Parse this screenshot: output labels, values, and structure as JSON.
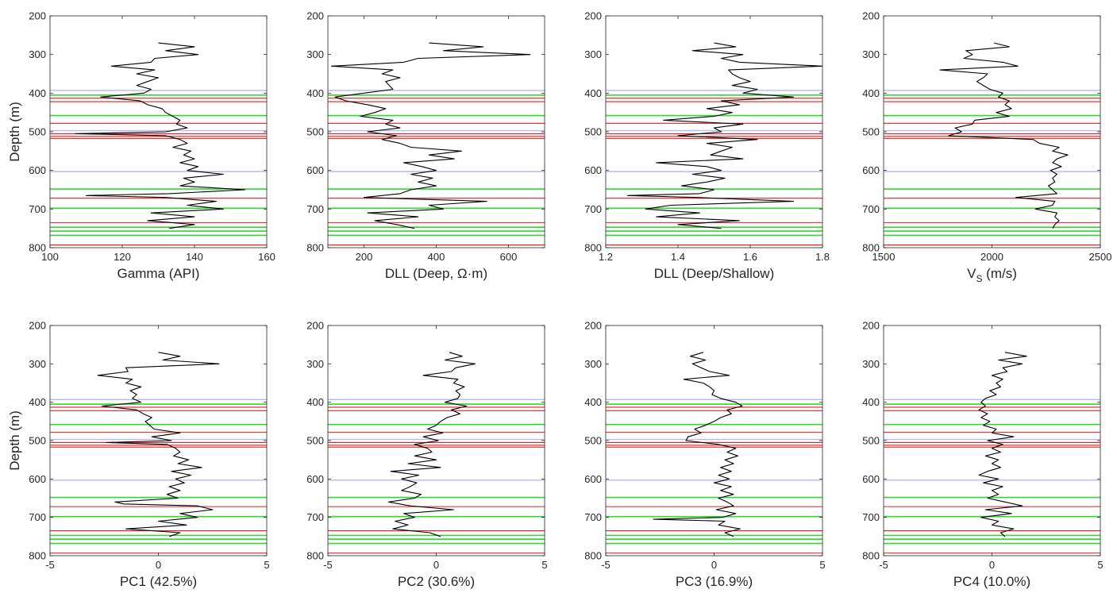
{
  "figure": {
    "ylabel": "Depth (m)"
  },
  "markers": {
    "blue_depths": [
      393,
      497,
      603
    ],
    "green_depths": [
      405,
      458,
      648,
      698,
      747,
      757,
      768
    ],
    "red_depths": [
      413,
      422,
      478,
      505,
      512,
      517,
      672,
      735,
      793
    ]
  },
  "chart_data": [
    {
      "type": "line",
      "xlabel": "Gamma (API)",
      "xlim": [
        100,
        160
      ],
      "xticks": [
        100,
        120,
        140,
        160
      ],
      "ylim": [
        200,
        800
      ],
      "yticks": [
        200,
        300,
        400,
        500,
        600,
        700,
        800
      ],
      "y_reversed": true,
      "series": [
        {
          "y": [
            270,
            280,
            290,
            300,
            310,
            320,
            330,
            340,
            350,
            360,
            370,
            380,
            390,
            400,
            410,
            420,
            430,
            440,
            450,
            460,
            470,
            480,
            490,
            500,
            505,
            510,
            520,
            530,
            540,
            550,
            560,
            570,
            580,
            590,
            600,
            610,
            620,
            630,
            640,
            650,
            660,
            665,
            670,
            680,
            690,
            700,
            710,
            720,
            730,
            740,
            750
          ],
          "x": [
            130,
            140,
            132,
            141,
            129,
            128,
            117,
            129,
            124,
            130,
            127,
            124,
            128,
            126,
            114,
            125,
            127,
            131,
            132,
            134,
            136,
            135,
            138,
            132,
            107,
            132,
            136,
            138,
            134,
            139,
            137,
            140,
            136,
            141,
            138,
            148,
            137,
            140,
            136,
            154,
            133,
            110,
            132,
            146,
            138,
            148,
            128,
            140,
            127,
            140,
            133
          ]
        }
      ]
    },
    {
      "type": "line",
      "xlabel": "DLL (Deep, Ω·m)",
      "xlim": [
        100,
        700
      ],
      "xticks": [
        200,
        400,
        600
      ],
      "ylim": [
        200,
        800
      ],
      "yticks": [
        200,
        300,
        400,
        500,
        600,
        700,
        800
      ],
      "y_reversed": true,
      "series": [
        {
          "y": [
            270,
            280,
            290,
            300,
            310,
            320,
            330,
            340,
            350,
            360,
            370,
            380,
            390,
            400,
            410,
            420,
            430,
            440,
            450,
            460,
            470,
            480,
            490,
            500,
            510,
            520,
            530,
            540,
            550,
            560,
            570,
            580,
            590,
            600,
            610,
            620,
            630,
            640,
            650,
            660,
            670,
            680,
            690,
            700,
            710,
            720,
            730,
            740,
            750
          ],
          "x": [
            380,
            530,
            420,
            660,
            350,
            310,
            110,
            280,
            250,
            300,
            260,
            270,
            280,
            200,
            120,
            150,
            210,
            260,
            230,
            190,
            280,
            260,
            300,
            210,
            290,
            250,
            300,
            330,
            470,
            380,
            450,
            310,
            360,
            400,
            330,
            390,
            350,
            400,
            330,
            300,
            200,
            540,
            380,
            420,
            210,
            350,
            230,
            290,
            340
          ]
        }
      ]
    },
    {
      "type": "line",
      "xlabel": "DLL (Deep/Shallow)",
      "xlim": [
        1.2,
        1.8
      ],
      "xticks": [
        1.2,
        1.4,
        1.6,
        1.8
      ],
      "ylim": [
        200,
        800
      ],
      "yticks": [
        200,
        300,
        400,
        500,
        600,
        700,
        800
      ],
      "y_reversed": true,
      "series": [
        {
          "y": [
            270,
            280,
            290,
            300,
            310,
            320,
            330,
            340,
            350,
            360,
            370,
            380,
            390,
            400,
            410,
            420,
            430,
            440,
            450,
            460,
            470,
            480,
            490,
            500,
            510,
            520,
            530,
            540,
            550,
            560,
            570,
            580,
            590,
            600,
            610,
            620,
            630,
            640,
            650,
            660,
            665,
            670,
            680,
            690,
            700,
            710,
            720,
            730,
            740,
            750
          ],
          "x": [
            1.5,
            1.56,
            1.44,
            1.58,
            1.52,
            1.57,
            1.8,
            1.54,
            1.55,
            1.57,
            1.6,
            1.55,
            1.62,
            1.58,
            1.72,
            1.52,
            1.57,
            1.48,
            1.55,
            1.5,
            1.36,
            1.58,
            1.5,
            1.52,
            1.4,
            1.62,
            1.48,
            1.55,
            1.52,
            1.49,
            1.58,
            1.34,
            1.48,
            1.52,
            1.44,
            1.53,
            1.48,
            1.41,
            1.5,
            1.46,
            1.26,
            1.45,
            1.72,
            1.38,
            1.31,
            1.46,
            1.34,
            1.57,
            1.4,
            1.52
          ]
        }
      ]
    },
    {
      "type": "line",
      "xlabel": "VS (m/s)",
      "xlim": [
        1500,
        2500
      ],
      "xticks": [
        1500,
        2000,
        2500
      ],
      "ylim": [
        200,
        800
      ],
      "yticks": [
        200,
        300,
        400,
        500,
        600,
        700,
        800
      ],
      "y_reversed": true,
      "series": [
        {
          "y": [
            270,
            280,
            290,
            300,
            310,
            320,
            330,
            340,
            350,
            360,
            370,
            380,
            390,
            400,
            410,
            420,
            430,
            440,
            450,
            460,
            470,
            480,
            490,
            500,
            510,
            520,
            530,
            540,
            550,
            560,
            570,
            580,
            590,
            600,
            610,
            620,
            630,
            640,
            650,
            660,
            670,
            680,
            690,
            700,
            710,
            720,
            730,
            740,
            750
          ],
          "x": [
            2010,
            2080,
            1880,
            1910,
            1870,
            2050,
            2120,
            1760,
            1980,
            1960,
            1930,
            1960,
            1990,
            2050,
            2030,
            2080,
            2060,
            2090,
            2020,
            2080,
            1920,
            1910,
            1830,
            1860,
            1800,
            2190,
            2220,
            2310,
            2280,
            2350,
            2300,
            2280,
            2320,
            2270,
            2300,
            2280,
            2290,
            2260,
            2280,
            2300,
            2110,
            2290,
            2280,
            2200,
            2300,
            2290,
            2310,
            2290,
            2280
          ]
        }
      ]
    },
    {
      "type": "line",
      "xlabel": "PC1 (42.5%)",
      "xlim": [
        -5,
        5
      ],
      "xticks": [
        -5,
        0,
        5
      ],
      "ylim": [
        200,
        800
      ],
      "yticks": [
        200,
        300,
        400,
        500,
        600,
        700,
        800
      ],
      "y_reversed": true,
      "series": [
        {
          "y": [
            270,
            280,
            290,
            300,
            310,
            320,
            330,
            340,
            350,
            360,
            370,
            380,
            390,
            400,
            410,
            420,
            430,
            440,
            450,
            460,
            470,
            480,
            490,
            500,
            505,
            510,
            520,
            530,
            540,
            550,
            560,
            570,
            580,
            590,
            600,
            610,
            620,
            630,
            640,
            650,
            660,
            665,
            670,
            680,
            690,
            700,
            710,
            720,
            730,
            740,
            750
          ],
          "x": [
            0.0,
            1.0,
            0.2,
            2.8,
            -1.5,
            -1.4,
            -2.8,
            -1.2,
            -1.5,
            -0.8,
            -1.3,
            -1.0,
            -1.2,
            -0.8,
            -2.6,
            -1.0,
            -0.7,
            -0.3,
            -0.6,
            -0.4,
            -0.2,
            1.0,
            -0.3,
            0.6,
            -2.4,
            0.4,
            0.8,
            1.0,
            0.7,
            1.4,
            0.9,
            2.0,
            0.6,
            1.5,
            0.8,
            1.2,
            0.5,
            1.0,
            0.4,
            0.9,
            -2.0,
            -1.6,
            1.8,
            2.5,
            1.0,
            1.8,
            0.0,
            1.3,
            -1.5,
            1.0,
            0.5
          ]
        }
      ]
    },
    {
      "type": "line",
      "xlabel": "PC2 (30.6%)",
      "xlim": [
        -5,
        5
      ],
      "xticks": [
        -5,
        0,
        5
      ],
      "ylim": [
        200,
        800
      ],
      "yticks": [
        200,
        300,
        400,
        500,
        600,
        700,
        800
      ],
      "y_reversed": true,
      "series": [
        {
          "y": [
            270,
            280,
            290,
            300,
            310,
            320,
            330,
            340,
            350,
            360,
            370,
            380,
            390,
            400,
            410,
            420,
            430,
            440,
            450,
            460,
            470,
            480,
            490,
            500,
            510,
            520,
            530,
            540,
            550,
            560,
            570,
            580,
            590,
            600,
            610,
            620,
            630,
            640,
            650,
            660,
            670,
            680,
            690,
            700,
            710,
            720,
            730,
            740,
            750
          ],
          "x": [
            0.6,
            1.2,
            0.4,
            1.8,
            0.9,
            0.7,
            -0.6,
            1.0,
            0.8,
            1.3,
            0.9,
            1.1,
            1.0,
            0.4,
            1.4,
            0.7,
            1.1,
            0.5,
            0.2,
            0.0,
            -0.4,
            0.3,
            -0.6,
            0.1,
            -1.0,
            -0.4,
            -0.2,
            -1.0,
            0.0,
            -1.3,
            0.2,
            -2.1,
            -0.8,
            -1.6,
            -0.9,
            -1.2,
            -1.6,
            -0.7,
            -1.0,
            -2.2,
            -1.2,
            0.8,
            -1.5,
            -1.0,
            -1.9,
            -1.3,
            -2.0,
            -0.3,
            0.2
          ]
        }
      ]
    },
    {
      "type": "line",
      "xlabel": "PC3 (16.9%)",
      "xlim": [
        -5,
        5
      ],
      "xticks": [
        -5,
        0,
        5
      ],
      "ylim": [
        200,
        800
      ],
      "yticks": [
        200,
        300,
        400,
        500,
        600,
        700,
        800
      ],
      "y_reversed": true,
      "series": [
        {
          "y": [
            270,
            280,
            290,
            300,
            310,
            320,
            330,
            340,
            350,
            360,
            370,
            380,
            390,
            400,
            410,
            420,
            430,
            440,
            450,
            460,
            470,
            480,
            490,
            500,
            510,
            520,
            530,
            540,
            550,
            560,
            570,
            580,
            590,
            600,
            610,
            620,
            630,
            640,
            650,
            660,
            670,
            680,
            690,
            700,
            705,
            710,
            720,
            730,
            740,
            750
          ],
          "x": [
            -0.5,
            -1.1,
            -0.4,
            -1.0,
            -0.6,
            -0.2,
            0.7,
            -1.4,
            -0.5,
            -0.2,
            0.0,
            -0.1,
            0.3,
            1.0,
            1.3,
            0.6,
            0.8,
            0.3,
            0.0,
            -0.4,
            -0.9,
            -0.6,
            -1.2,
            -1.3,
            0.2,
            1.0,
            0.6,
            1.1,
            0.5,
            0.9,
            0.3,
            0.8,
            0.2,
            0.7,
            0.0,
            0.8,
            0.3,
            0.9,
            0.2,
            0.6,
            0.9,
            0.1,
            1.0,
            0.4,
            -2.8,
            0.5,
            0.2,
            1.2,
            0.5,
            0.9
          ]
        }
      ]
    },
    {
      "type": "line",
      "xlabel": "PC4 (10.0%)",
      "xlim": [
        -5,
        5
      ],
      "xticks": [
        -5,
        0,
        5
      ],
      "ylim": [
        200,
        800
      ],
      "yticks": [
        200,
        300,
        400,
        500,
        600,
        700,
        800
      ],
      "y_reversed": true,
      "series": [
        {
          "y": [
            270,
            280,
            290,
            300,
            310,
            320,
            330,
            340,
            350,
            360,
            370,
            380,
            390,
            400,
            410,
            420,
            430,
            440,
            450,
            460,
            470,
            480,
            490,
            500,
            510,
            520,
            530,
            540,
            550,
            560,
            570,
            580,
            590,
            600,
            610,
            620,
            630,
            640,
            650,
            660,
            670,
            680,
            690,
            700,
            710,
            720,
            730,
            740,
            750
          ],
          "x": [
            0.6,
            1.6,
            0.3,
            1.4,
            0.5,
            0.7,
            0.0,
            0.5,
            0.2,
            0.4,
            -0.1,
            0.2,
            -0.3,
            -0.5,
            -0.3,
            -0.6,
            -0.2,
            -0.5,
            -0.1,
            -0.4,
            0.2,
            0.0,
            1.0,
            -0.2,
            0.5,
            0.0,
            0.4,
            -0.3,
            0.3,
            0.0,
            0.4,
            -0.2,
            -0.6,
            0.3,
            -0.4,
            0.5,
            0.0,
            0.3,
            -0.2,
            0.6,
            1.4,
            -0.3,
            0.9,
            -0.5,
            0.3,
            0.0,
            1.0,
            0.4,
            0.6
          ]
        }
      ]
    }
  ]
}
